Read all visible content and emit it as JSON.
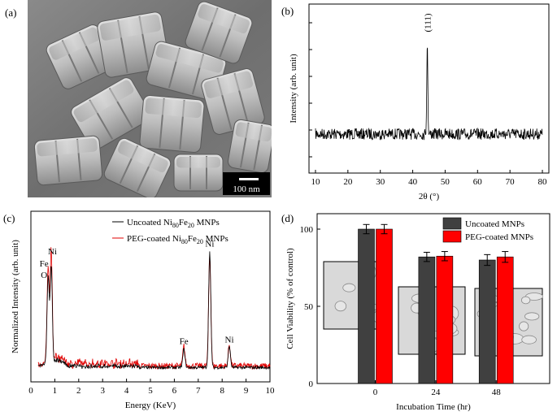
{
  "figure": {
    "panels": [
      {
        "id": "a",
        "label": "(a)",
        "type": "SEM image",
        "scale_bar": "100 nm"
      },
      {
        "id": "b",
        "label": "(b)"
      },
      {
        "id": "c",
        "label": "(c)"
      },
      {
        "id": "d",
        "label": "(d)"
      }
    ]
  },
  "chart_data": [
    {
      "panel": "b",
      "type": "line",
      "xlabel": "2θ (°)",
      "ylabel": "Intensity (arb. unit)",
      "xlim": [
        8,
        82
      ],
      "xticks": [
        10,
        20,
        30,
        40,
        50,
        60,
        70,
        80
      ],
      "peaks": [
        {
          "x": 44.5,
          "label": "(111)"
        }
      ],
      "baseline_noise": true
    },
    {
      "panel": "c",
      "type": "line",
      "xlabel": "Energy (KeV)",
      "ylabel": "Normalized Intensity (arb. unit)",
      "xlim": [
        0,
        10
      ],
      "xticks": [
        0,
        1,
        2,
        3,
        4,
        5,
        6,
        7,
        8,
        9,
        10
      ],
      "series": [
        {
          "name_prefix": "Uncoated Ni",
          "sub1": "80",
          "mid": "Fe",
          "sub2": "20",
          "suffix": " MNPs",
          "color": "#000000"
        },
        {
          "name_prefix": "PEG-coated Ni",
          "sub1": "80",
          "mid": "Fe",
          "sub2": "20",
          "suffix": " MNPs",
          "color": "#e00000"
        }
      ],
      "peak_labels": [
        {
          "x": 0.55,
          "text": "Fe"
        },
        {
          "x": 0.55,
          "text": "O"
        },
        {
          "x": 0.9,
          "text": "Ni"
        },
        {
          "x": 6.4,
          "text": "Fe"
        },
        {
          "x": 7.48,
          "text": "Ni"
        },
        {
          "x": 8.3,
          "text": "Ni"
        }
      ],
      "peaks": [
        {
          "x": 0.72,
          "black": 0.55,
          "red": 0.6
        },
        {
          "x": 0.85,
          "black": 0.62,
          "red": 0.72
        },
        {
          "x": 6.4,
          "black": 0.12,
          "red": 0.13
        },
        {
          "x": 7.48,
          "black": 0.75,
          "red": 0.72
        },
        {
          "x": 8.3,
          "black": 0.14,
          "red": 0.14
        }
      ]
    },
    {
      "panel": "d",
      "type": "bar",
      "xlabel": "Incubation Time (hr)",
      "ylabel": "Cell Viability (% of control)",
      "ylim": [
        0,
        110
      ],
      "yticks": [
        0,
        50,
        100
      ],
      "categories": [
        "0",
        "24",
        "48"
      ],
      "series": [
        {
          "name": "Uncoated MNPs",
          "color": "#404040",
          "values": [
            100,
            82,
            80
          ],
          "errors": [
            3,
            3,
            3.5
          ]
        },
        {
          "name": "PEG-coated MNPs",
          "color": "#ff0000",
          "values": [
            100,
            82.5,
            82
          ],
          "errors": [
            3,
            3,
            3.5
          ]
        }
      ]
    }
  ]
}
